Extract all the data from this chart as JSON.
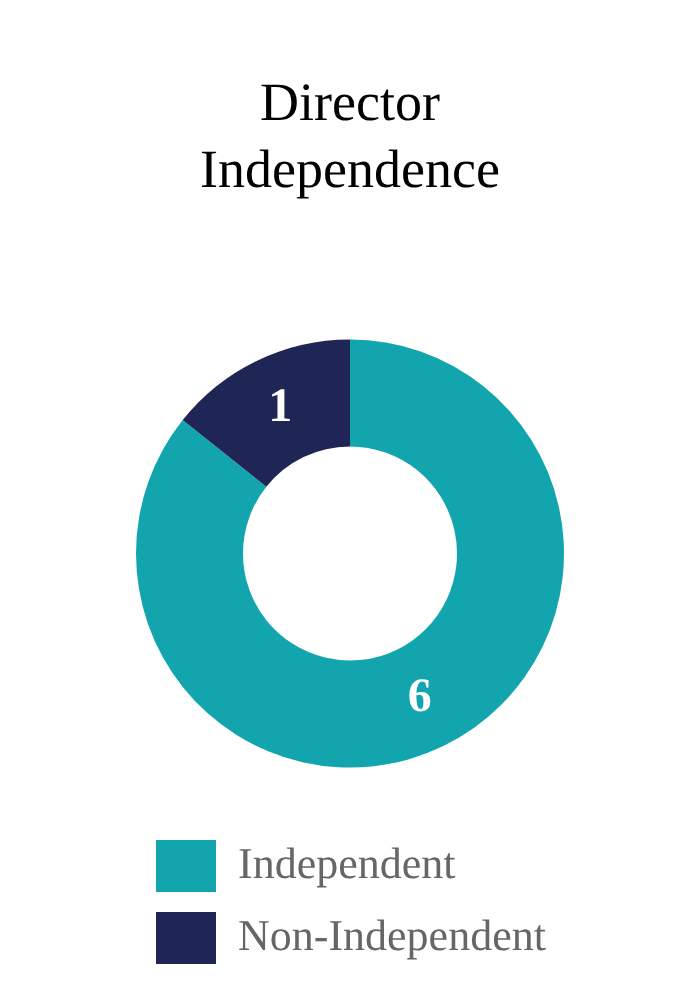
{
  "chart_data": {
    "type": "donut",
    "title": "Director Independence",
    "categories": [
      "Independent",
      "Non-Independent"
    ],
    "values": [
      6,
      1
    ],
    "colors": [
      "#13a5ad",
      "#1f2554"
    ],
    "data_labels": true,
    "legend": "bottom"
  }
}
